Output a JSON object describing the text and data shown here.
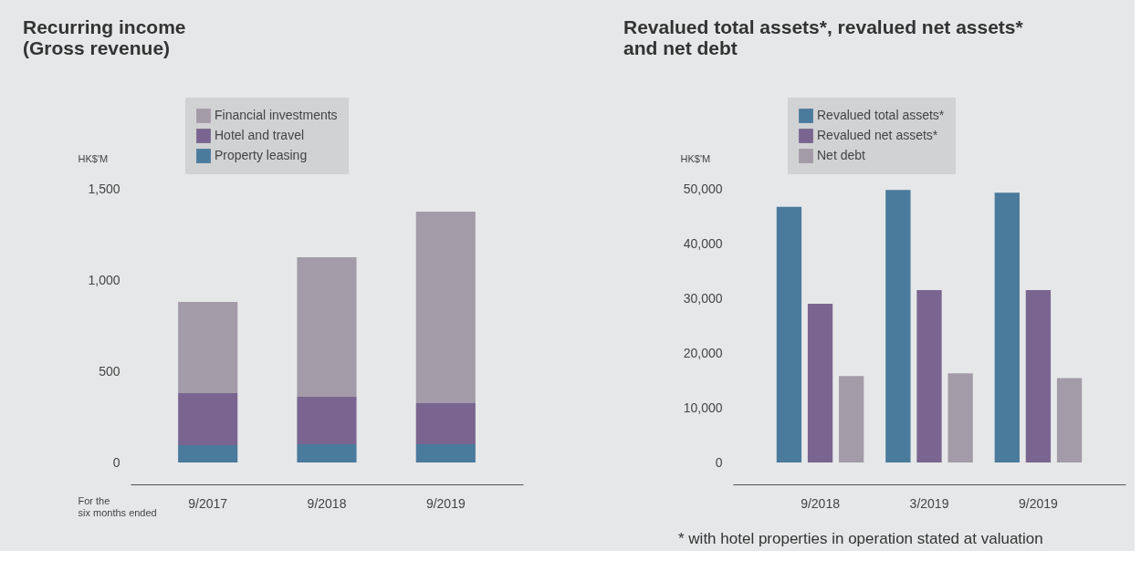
{
  "chart_data": [
    {
      "type": "bar",
      "title": "Recurring income\n(Gross revenue)",
      "ylabel": "HK$'M",
      "xlabel": "For the\nsix months ended",
      "categories": [
        "9/2017",
        "9/2018",
        "9/2019"
      ],
      "stacked": true,
      "legend": "top",
      "ylim": [
        0,
        1500
      ],
      "yticks": [
        0,
        {
          "value": 500,
          "label": "500"
        },
        {
          "value": 1000,
          "label": "1,000"
        },
        {
          "value": 1500,
          "label": "1,500"
        }
      ],
      "series": [
        {
          "name": "Property leasing",
          "color": "#4a7a9c",
          "values": [
            95,
            100,
            100
          ]
        },
        {
          "name": "Hotel and travel",
          "color": "#7a6590",
          "values": [
            285,
            260,
            225
          ]
        },
        {
          "name": "Financial investments",
          "color": "#a39ba8",
          "values": [
            500,
            765,
            1050
          ]
        }
      ]
    },
    {
      "type": "bar",
      "title": "Revalued total assets*, revalued net assets*\nand net debt",
      "ylabel": "HK$'M",
      "categories": [
        "9/2018",
        "3/2019",
        "9/2019"
      ],
      "legend": "top",
      "ylim": [
        0,
        50000
      ],
      "yticks": [
        0,
        {
          "value": 10000,
          "label": "10,000"
        },
        {
          "value": 20000,
          "label": "20,000"
        },
        {
          "value": 30000,
          "label": "30,000"
        },
        {
          "value": 40000,
          "label": "40,000"
        },
        {
          "value": 50000,
          "label": "50,000"
        }
      ],
      "annotations": [
        "* with hotel properties in operation stated at valuation"
      ],
      "series": [
        {
          "name": "Revalued total assets*",
          "color": "#4a7a9c",
          "values": [
            46700,
            49800,
            49300
          ]
        },
        {
          "name": "Revalued net assets*",
          "color": "#7a6590",
          "values": [
            29000,
            31500,
            31500
          ]
        },
        {
          "name": "Net debt",
          "color": "#a39ba8",
          "values": [
            15800,
            16300,
            15400
          ]
        }
      ]
    }
  ]
}
